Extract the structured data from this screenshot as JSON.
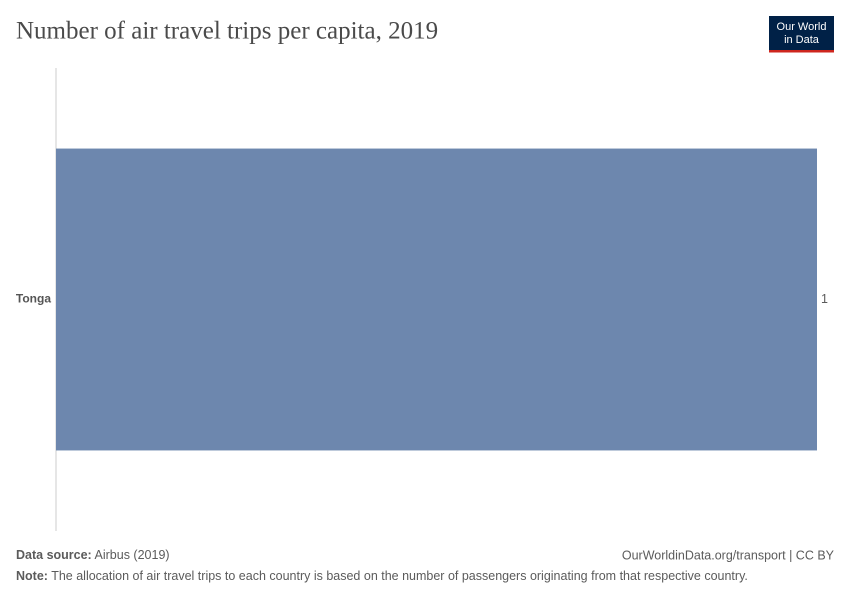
{
  "chart_data": {
    "type": "hbar",
    "title": "Number of air travel trips per capita, 2019",
    "logo": [
      "Our World",
      "in Data"
    ],
    "categories": [
      "Tonga"
    ],
    "values": [
      1
    ],
    "color": "#6d87ae",
    "xlim": [
      0,
      1
    ],
    "source_label": "Data source:",
    "source": "Airbus (2019)",
    "url": "OurWorldinData.org/transport | CC BY",
    "note_label": "Note:",
    "note": "The allocation of air travel trips to each country is based on the number of passengers originating from that respective country."
  }
}
